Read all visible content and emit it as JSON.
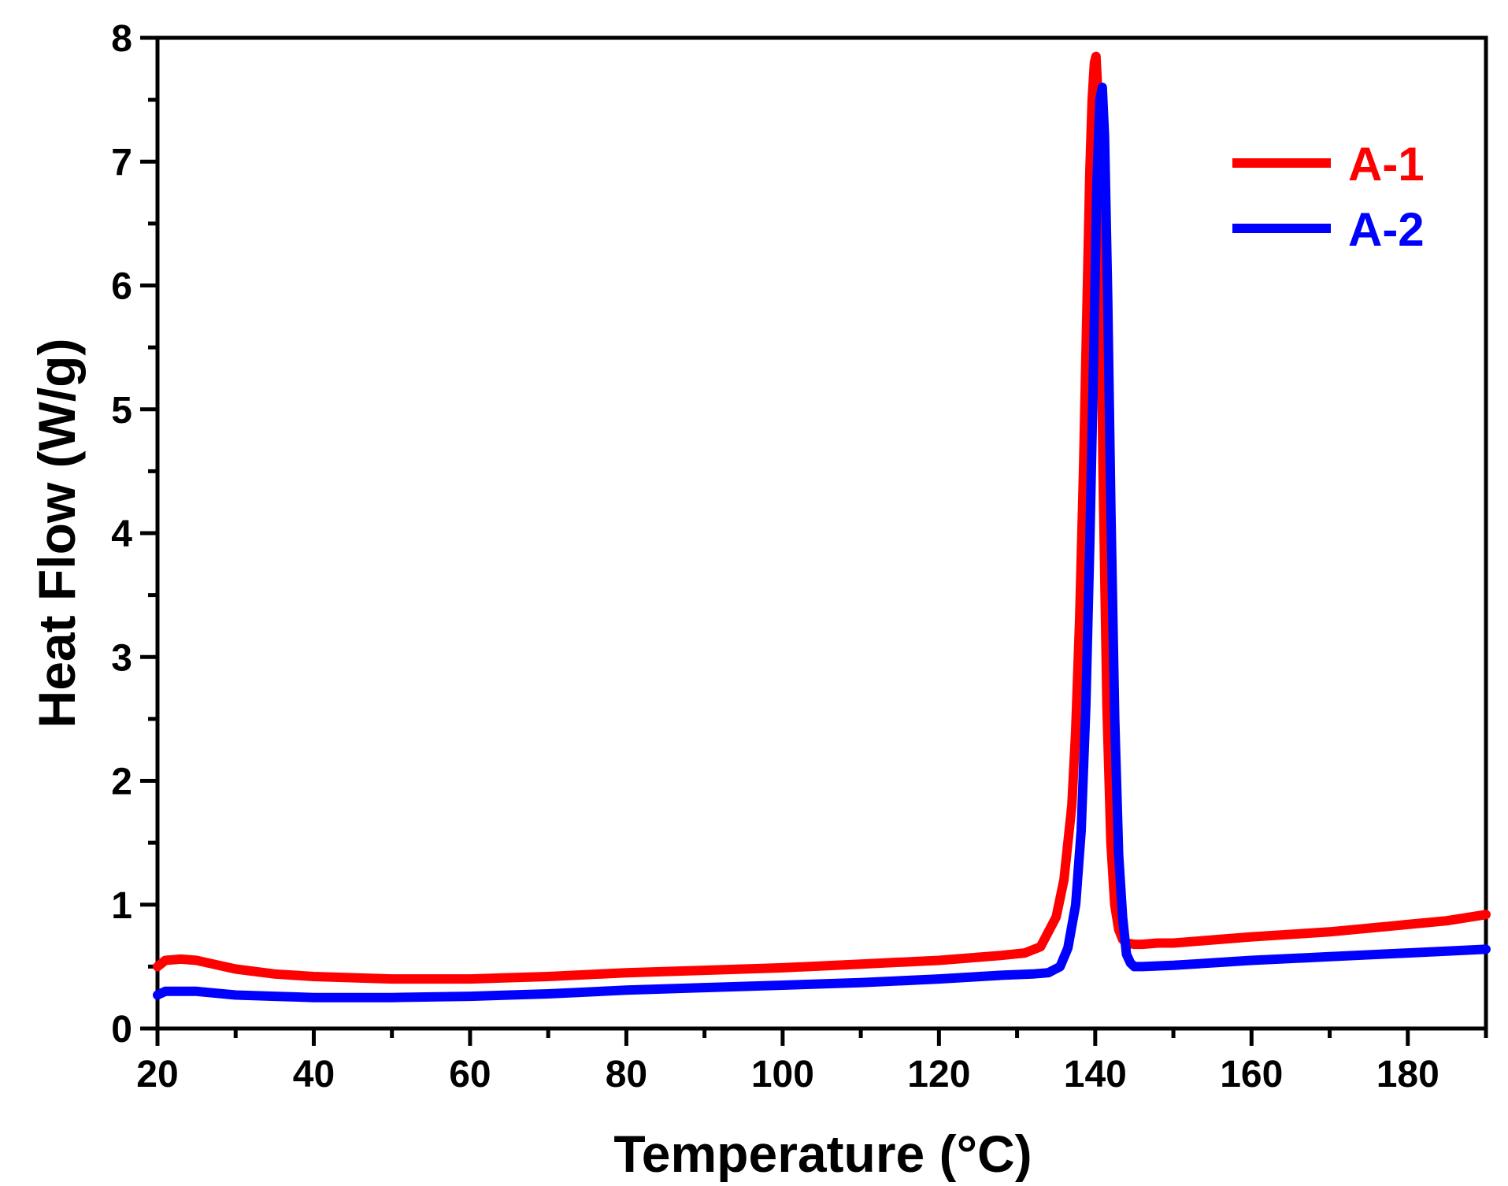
{
  "chart_data": {
    "type": "line",
    "xlabel": "Temperature (°C)",
    "ylabel": "Heat Flow (W/g)",
    "xlim": [
      20,
      190
    ],
    "ylim": [
      0,
      8
    ],
    "x_ticks": [
      20,
      40,
      60,
      80,
      100,
      120,
      140,
      160,
      180
    ],
    "y_ticks": [
      0,
      1,
      2,
      3,
      4,
      5,
      6,
      7,
      8
    ],
    "grid": false,
    "legend_position": "top-right",
    "series": [
      {
        "name": "A-1",
        "color": "#ff0000",
        "x": [
          20,
          21,
          23,
          25,
          30,
          35,
          40,
          50,
          60,
          70,
          80,
          90,
          100,
          110,
          120,
          128,
          131,
          133,
          135,
          136,
          137,
          137.5,
          138,
          138.5,
          139,
          139.3,
          139.6,
          139.9,
          140.1,
          140.3,
          140.6,
          141,
          141.5,
          142,
          142.5,
          143,
          143.5,
          144,
          145,
          146,
          148,
          150,
          160,
          170,
          180,
          185,
          190
        ],
        "y": [
          0.5,
          0.55,
          0.56,
          0.55,
          0.48,
          0.44,
          0.42,
          0.4,
          0.4,
          0.42,
          0.45,
          0.47,
          0.49,
          0.52,
          0.55,
          0.59,
          0.61,
          0.66,
          0.9,
          1.2,
          1.8,
          2.4,
          3.3,
          4.5,
          6.0,
          6.9,
          7.5,
          7.8,
          7.85,
          7.6,
          6.5,
          4.5,
          2.6,
          1.5,
          1.0,
          0.8,
          0.72,
          0.69,
          0.68,
          0.68,
          0.69,
          0.69,
          0.74,
          0.78,
          0.84,
          0.87,
          0.92
        ]
      },
      {
        "name": "A-2",
        "color": "#0000ff",
        "x": [
          20,
          21,
          23,
          25,
          30,
          35,
          40,
          50,
          60,
          70,
          80,
          90,
          100,
          110,
          120,
          128,
          132,
          134,
          135.5,
          136.5,
          137.5,
          138.2,
          138.8,
          139.3,
          139.8,
          140.2,
          140.6,
          140.9,
          141.2,
          141.6,
          142,
          142.5,
          143,
          143.5,
          144,
          144.5,
          145,
          146,
          150,
          160,
          170,
          180,
          190
        ],
        "y": [
          0.27,
          0.3,
          0.3,
          0.3,
          0.27,
          0.26,
          0.25,
          0.25,
          0.26,
          0.28,
          0.31,
          0.33,
          0.35,
          0.37,
          0.4,
          0.43,
          0.44,
          0.45,
          0.5,
          0.65,
          1.0,
          1.6,
          2.6,
          3.9,
          5.4,
          6.8,
          7.5,
          7.6,
          7.2,
          5.9,
          4.2,
          2.5,
          1.4,
          0.9,
          0.6,
          0.53,
          0.5,
          0.5,
          0.51,
          0.55,
          0.58,
          0.61,
          0.64
        ]
      }
    ]
  }
}
